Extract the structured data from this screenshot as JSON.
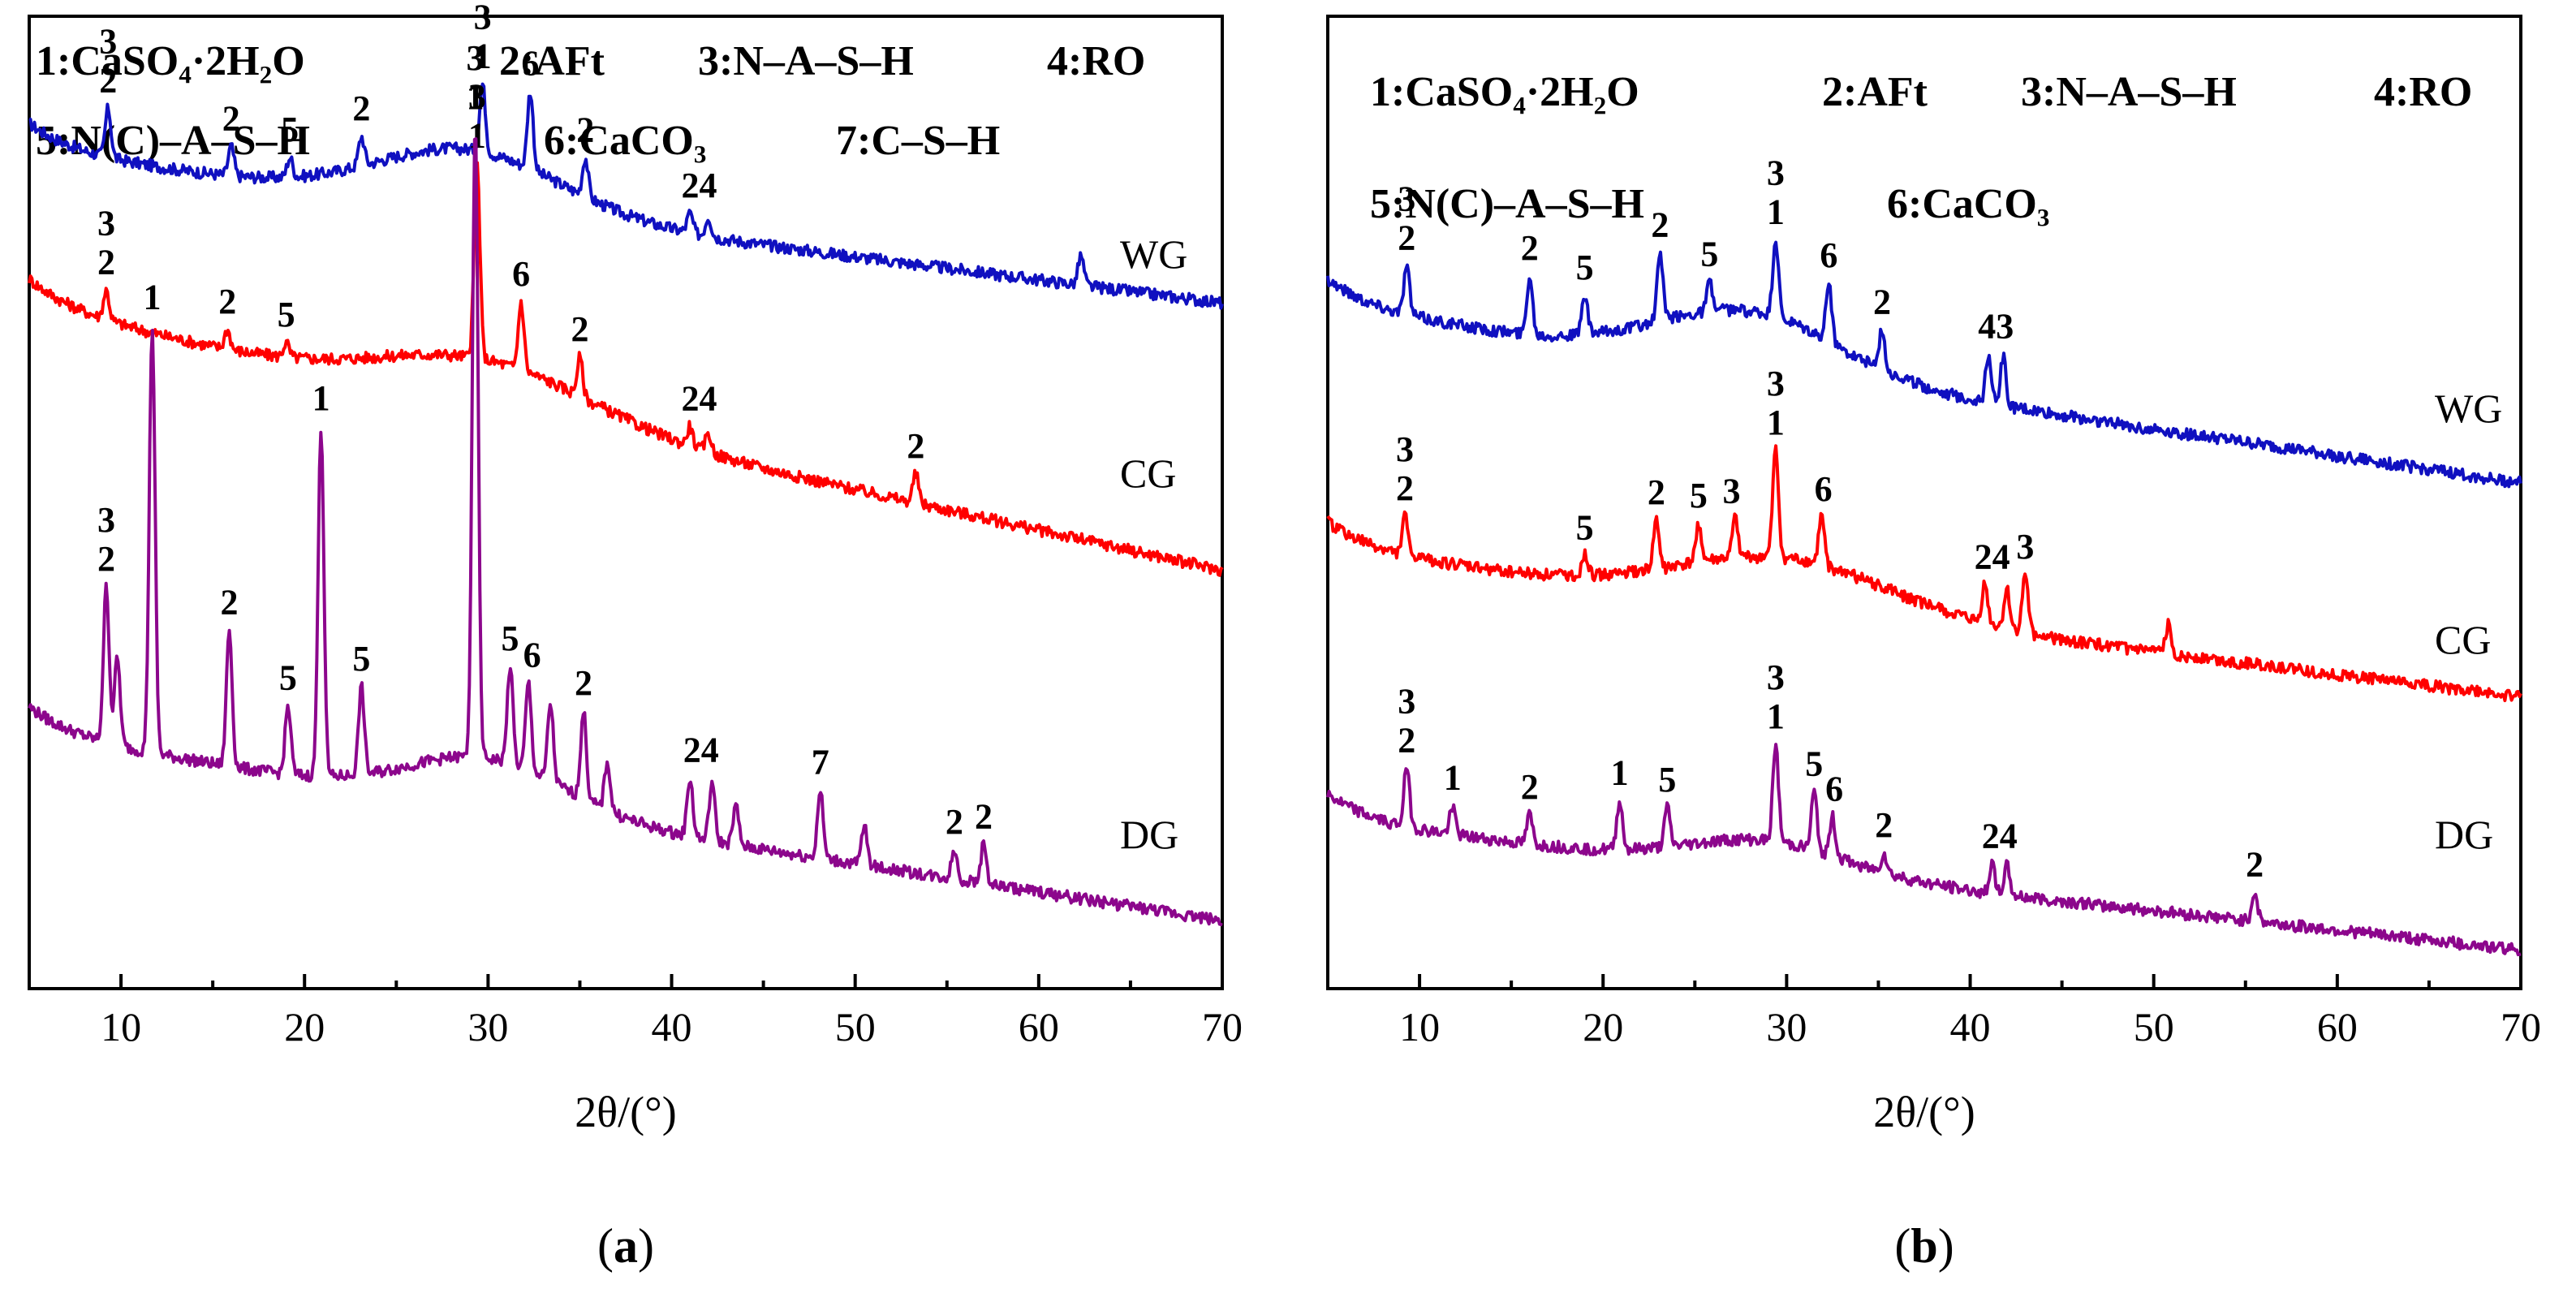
{
  "chart_data": [
    {
      "type": "line",
      "panel": "a",
      "caption_open": "(",
      "caption_letter": "a",
      "caption_close": ")",
      "xlabel": "2θ/(°)",
      "xlim": [
        5,
        70
      ],
      "xticks": [
        10,
        20,
        30,
        40,
        50,
        60,
        70
      ],
      "legend_lines": [
        [
          "1:CaSO₄·2H₂O",
          "2:AFt",
          "3:N–A–S–H",
          "4:RO"
        ],
        [
          "5:N(C)–A–S–H",
          "6:CaCO₃",
          "7:C–S–H"
        ]
      ],
      "series": [
        {
          "name": "WG",
          "color": "#1010c0",
          "baseline_start": 0.86,
          "baseline_end": 0.705,
          "hump": {
            "center": 29,
            "width": 7,
            "height": 0.06
          },
          "peaks": [
            [
              9.3,
              0.05
            ],
            [
              16,
              0.03
            ],
            [
              19.2,
              0.02
            ],
            [
              23.1,
              0.03
            ],
            [
              29.7,
              0.07
            ],
            [
              32.3,
              0.08
            ],
            [
              35.3,
              0.04
            ],
            [
              41,
              0.02
            ],
            [
              42,
              0.02
            ],
            [
              62.3,
              0.03
            ]
          ],
          "labels": [
            {
              "x": 9.3,
              "lines": [
                "3",
                "2"
              ]
            },
            {
              "x": 16.0,
              "lines": [
                "2"
              ]
            },
            {
              "x": 19.2,
              "lines": [
                "5"
              ]
            },
            {
              "x": 23.1,
              "lines": [
                "2"
              ]
            },
            {
              "x": 29.7,
              "lines": [
                "3",
                "1"
              ]
            },
            {
              "x": 32.3,
              "lines": [
                "6"
              ]
            },
            {
              "x": 35.3,
              "lines": [
                "2"
              ]
            },
            {
              "x": 41.5,
              "lines": [
                "24"
              ]
            }
          ]
        },
        {
          "name": "CG",
          "color": "#ff0000",
          "baseline_start": 0.7,
          "baseline_end": 0.43,
          "hump": {
            "center": 30,
            "width": 8,
            "height": 0.05
          },
          "peaks": [
            [
              9.2,
              0.03
            ],
            [
              15.8,
              0.02
            ],
            [
              19,
              0.015
            ],
            [
              29.4,
              0.2
            ],
            [
              31.8,
              0.07
            ],
            [
              35,
              0.04
            ],
            [
              41,
              0.02
            ],
            [
              42,
              0.02
            ],
            [
              53.3,
              0.03
            ]
          ],
          "labels": [
            {
              "x": 9.2,
              "lines": [
                "3",
                "2"
              ]
            },
            {
              "x": 15.8,
              "lines": [
                "2"
              ]
            },
            {
              "x": 19.0,
              "lines": [
                "5"
              ]
            },
            {
              "x": 29.4,
              "lines": [
                "3",
                "1"
              ]
            },
            {
              "x": 31.8,
              "lines": [
                "6"
              ]
            },
            {
              "x": 35.0,
              "lines": [
                "2"
              ]
            },
            {
              "x": 41.5,
              "lines": [
                "24"
              ]
            },
            {
              "x": 53.3,
              "lines": [
                "2"
              ]
            }
          ]
        },
        {
          "name": "DG",
          "color": "#8c068c",
          "baseline_start": 0.26,
          "baseline_end": 0.07,
          "hump": {
            "center": 30,
            "width": 6,
            "height": 0.05
          },
          "peaks": [
            [
              9.2,
              0.16
            ],
            [
              9.8,
              0.09
            ],
            [
              11.7,
              0.44
            ],
            [
              15.9,
              0.14
            ],
            [
              19.1,
              0.07
            ],
            [
              20.9,
              0.36
            ],
            [
              23.1,
              0.09
            ],
            [
              29.3,
              0.65
            ],
            [
              31.2,
              0.1
            ],
            [
              32.2,
              0.09
            ],
            [
              33.4,
              0.08
            ],
            [
              35.2,
              0.09
            ],
            [
              36.5,
              0.05
            ],
            [
              41,
              0.06
            ],
            [
              42.2,
              0.06
            ],
            [
              43.5,
              0.04
            ],
            [
              48.1,
              0.07
            ],
            [
              50.5,
              0.04
            ],
            [
              55.4,
              0.03
            ],
            [
              57,
              0.04
            ]
          ],
          "labels": [
            {
              "x": 9.2,
              "lines": [
                "3",
                "2"
              ]
            },
            {
              "x": 11.7,
              "lines": [
                "1"
              ]
            },
            {
              "x": 15.9,
              "lines": [
                "2"
              ]
            },
            {
              "x": 19.1,
              "lines": [
                "5"
              ]
            },
            {
              "x": 20.9,
              "lines": [
                "1"
              ]
            },
            {
              "x": 23.1,
              "lines": [
                "5"
              ]
            },
            {
              "x": 29.3,
              "lines": [
                "3",
                "1"
              ]
            },
            {
              "x": 31.2,
              "lines": [
                "5"
              ]
            },
            {
              "x": 32.4,
              "lines": [
                "6"
              ]
            },
            {
              "x": 35.2,
              "lines": [
                "2"
              ]
            },
            {
              "x": 41.6,
              "lines": [
                "24"
              ]
            },
            {
              "x": 48.1,
              "lines": [
                "7"
              ]
            },
            {
              "x": 55.4,
              "lines": [
                "2"
              ]
            },
            {
              "x": 57.0,
              "lines": [
                "2"
              ]
            }
          ]
        }
      ]
    },
    {
      "type": "line",
      "panel": "b",
      "caption_open": "(",
      "caption_letter": "b",
      "caption_close": ")",
      "xlabel": "2θ/(°)",
      "xlim": [
        5,
        70
      ],
      "xticks": [
        10,
        20,
        30,
        40,
        50,
        60,
        70
      ],
      "legend_lines": [
        [
          "1:CaSO₄·2H₂O",
          "2:AFt",
          "3:N–A–S–H",
          "4:RO"
        ],
        [
          "5:N(C)–A–S–H",
          "6:CaCO₃"
        ]
      ],
      "series": [
        {
          "name": "WG",
          "color": "#1010c0",
          "baseline_start": 0.7,
          "baseline_end": 0.52,
          "hump": {
            "center": 28,
            "width": 7,
            "height": 0.06
          },
          "peaks": [
            [
              9.3,
              0.05
            ],
            [
              16,
              0.06
            ],
            [
              19,
              0.04
            ],
            [
              23.1,
              0.07
            ],
            [
              25.8,
              0.03
            ],
            [
              29.4,
              0.08
            ],
            [
              32.3,
              0.06
            ],
            [
              35.2,
              0.04
            ],
            [
              41,
              0.05
            ],
            [
              41.8,
              0.05
            ]
          ],
          "labels": [
            {
              "x": 9.3,
              "lines": [
                "3",
                "2"
              ]
            },
            {
              "x": 16.0,
              "lines": [
                "2"
              ]
            },
            {
              "x": 19.0,
              "lines": [
                "5"
              ]
            },
            {
              "x": 23.1,
              "lines": [
                "2"
              ]
            },
            {
              "x": 25.8,
              "lines": [
                "5"
              ]
            },
            {
              "x": 29.4,
              "lines": [
                "3",
                "1"
              ]
            },
            {
              "x": 32.3,
              "lines": [
                "6"
              ]
            },
            {
              "x": 35.2,
              "lines": [
                "2"
              ]
            },
            {
              "x": 41.4,
              "lines": [
                "43"
              ]
            }
          ]
        },
        {
          "name": "CG",
          "color": "#ff0000",
          "baseline_start": 0.45,
          "baseline_end": 0.3,
          "hump": {
            "center": 30,
            "width": 8,
            "height": 0.05
          },
          "peaks": [
            [
              9.2,
              0.04
            ],
            [
              19,
              0.02
            ],
            [
              22.9,
              0.05
            ],
            [
              25.2,
              0.04
            ],
            [
              27.2,
              0.04
            ],
            [
              29.4,
              0.11
            ],
            [
              31.9,
              0.05
            ],
            [
              40.8,
              0.04
            ],
            [
              42,
              0.04
            ],
            [
              43,
              0.06
            ],
            [
              50.8,
              0.03
            ]
          ],
          "labels": [
            {
              "x": 9.2,
              "lines": [
                "3",
                "2"
              ]
            },
            {
              "x": 19.0,
              "lines": [
                "5"
              ]
            },
            {
              "x": 22.9,
              "lines": [
                "2"
              ]
            },
            {
              "x": 25.2,
              "lines": [
                "5"
              ]
            },
            {
              "x": 27.0,
              "lines": [
                "3"
              ]
            },
            {
              "x": 29.4,
              "lines": [
                "3",
                "1"
              ]
            },
            {
              "x": 32.0,
              "lines": [
                "6"
              ]
            },
            {
              "x": 41.2,
              "lines": [
                "24"
              ]
            },
            {
              "x": 43.0,
              "lines": [
                "3"
              ]
            }
          ]
        },
        {
          "name": "DG",
          "color": "#8c068c",
          "baseline_start": 0.17,
          "baseline_end": 0.04,
          "hump": {
            "center": 29,
            "width": 6,
            "height": 0.03
          },
          "peaks": [
            [
              9.3,
              0.06
            ],
            [
              11.8,
              0.03
            ],
            [
              16,
              0.03
            ],
            [
              20.9,
              0.05
            ],
            [
              23.5,
              0.04
            ],
            [
              29.4,
              0.1
            ],
            [
              31.5,
              0.06
            ],
            [
              32.5,
              0.04
            ],
            [
              35.3,
              0.02
            ],
            [
              41.2,
              0.03
            ],
            [
              42,
              0.03
            ],
            [
              55.5,
              0.03
            ]
          ],
          "labels": [
            {
              "x": 9.3,
              "lines": [
                "3",
                "2"
              ]
            },
            {
              "x": 11.8,
              "lines": [
                "1"
              ]
            },
            {
              "x": 16.0,
              "lines": [
                "2"
              ]
            },
            {
              "x": 20.9,
              "lines": [
                "1"
              ]
            },
            {
              "x": 23.5,
              "lines": [
                "5"
              ]
            },
            {
              "x": 29.4,
              "lines": [
                "3",
                "1"
              ]
            },
            {
              "x": 31.5,
              "lines": [
                "5"
              ]
            },
            {
              "x": 32.6,
              "lines": [
                "6"
              ]
            },
            {
              "x": 35.3,
              "lines": [
                "2"
              ]
            },
            {
              "x": 41.6,
              "lines": [
                "24"
              ]
            },
            {
              "x": 55.5,
              "lines": [
                "2"
              ]
            }
          ]
        }
      ]
    }
  ]
}
